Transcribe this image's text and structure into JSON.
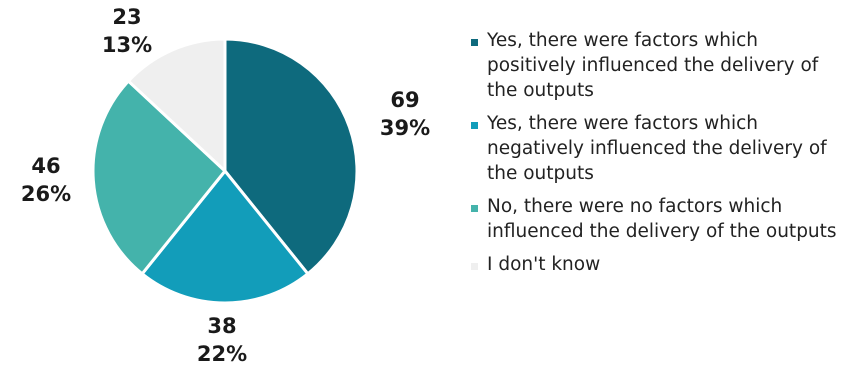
{
  "chart_data": {
    "type": "pie",
    "title": "",
    "slices": [
      {
        "label": "Yes, there were factors which positively influenced the delivery of the outputs",
        "value": 69,
        "percent": "39%",
        "color": "#0e6a7d"
      },
      {
        "label": "Yes, there were factors which negatively influenced the delivery of the outputs",
        "value": 38,
        "percent": "22%",
        "color": "#129dba"
      },
      {
        "label": "No, there were no factors which influenced the delivery of the outputs",
        "value": 46,
        "percent": "26%",
        "color": "#44b3ab"
      },
      {
        "label": "I don't know",
        "value": 23,
        "percent": "13%",
        "color": "#efefef"
      }
    ],
    "legend_position": "right",
    "start_angle": "12 o'clock, clockwise"
  }
}
